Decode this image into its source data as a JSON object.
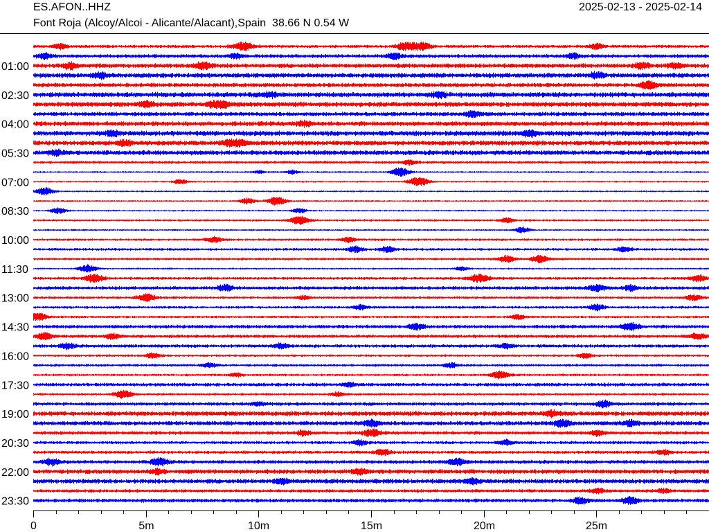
{
  "header": {
    "station": "ES.AFON..HHZ",
    "location": "Font Roja (Alcoy/Alcoi - Alicante/Alacant),Spain  38.66 N 0.54 W",
    "date_range": "2025-02-13 - 2025-02-14"
  },
  "colors": {
    "trace_a": "#ff0000",
    "trace_b": "#0000ff",
    "axis": "#000000"
  },
  "chart_data": {
    "type": "helicorder",
    "channel": "ES.AFON..HHZ",
    "xlabel": "",
    "ylabel": "",
    "x_range_minutes": [
      0,
      30
    ],
    "x_ticks": [
      "0",
      "5m",
      "10m",
      "15m",
      "20m",
      "25m"
    ],
    "x_tick_values": [
      0,
      5,
      10,
      15,
      20,
      25
    ],
    "minor_tick_step_minutes": 1,
    "row_interval_minutes": 30,
    "row_start_labels": [
      "01:00",
      "02:30",
      "04:00",
      "05:30",
      "07:00",
      "08:30",
      "10:00",
      "11:30",
      "13:00",
      "14:30",
      "16:00",
      "17:30",
      "19:00",
      "20:30",
      "22:00",
      "23:30"
    ],
    "row_labels_every_n_rows": 3,
    "rows": [
      {
        "start": "00:00",
        "color": "red",
        "level": 0.45,
        "events": [
          [
            1.2,
            0.5
          ],
          [
            9.3,
            0.9
          ],
          [
            16.5,
            0.8
          ],
          [
            17.2,
            0.9
          ],
          [
            25.0,
            0.5
          ]
        ]
      },
      {
        "start": "00:30",
        "color": "blue",
        "level": 0.6,
        "events": [
          [
            0.5,
            0.5
          ],
          [
            9.0,
            0.5
          ],
          [
            16.0,
            0.6
          ],
          [
            24.0,
            0.5
          ]
        ]
      },
      {
        "start": "01:00",
        "color": "red",
        "level": 0.75,
        "events": [
          [
            1.6,
            0.6
          ],
          [
            7.5,
            0.8
          ],
          [
            27.0,
            0.6
          ],
          [
            28.5,
            0.5
          ]
        ]
      },
      {
        "start": "01:30",
        "color": "blue",
        "level": 0.85,
        "events": [
          [
            3.0,
            0.5
          ],
          [
            25.0,
            0.5
          ]
        ]
      },
      {
        "start": "02:00",
        "color": "red",
        "level": 0.7,
        "events": [
          [
            27.3,
            0.8
          ]
        ]
      },
      {
        "start": "02:30",
        "color": "blue",
        "level": 0.9,
        "events": [
          [
            10.5,
            0.5
          ],
          [
            18.0,
            0.5
          ]
        ]
      },
      {
        "start": "03:00",
        "color": "red",
        "level": 0.85,
        "events": [
          [
            8.2,
            1.0
          ],
          [
            5.0,
            0.5
          ]
        ]
      },
      {
        "start": "03:30",
        "color": "blue",
        "level": 0.7,
        "events": [
          [
            19.5,
            0.6
          ]
        ]
      },
      {
        "start": "04:00",
        "color": "red",
        "level": 0.8,
        "events": [
          [
            12.0,
            0.5
          ]
        ]
      },
      {
        "start": "04:30",
        "color": "blue",
        "level": 0.9,
        "events": [
          [
            3.5,
            0.5
          ],
          [
            22.0,
            0.5
          ]
        ]
      },
      {
        "start": "05:00",
        "color": "red",
        "level": 0.85,
        "events": [
          [
            8.9,
            1.0
          ],
          [
            4.0,
            0.5
          ]
        ]
      },
      {
        "start": "05:30",
        "color": "blue",
        "level": 0.85,
        "events": [
          [
            1.0,
            0.5
          ]
        ]
      },
      {
        "start": "06:00",
        "color": "red",
        "level": 0.4,
        "events": [
          [
            16.7,
            0.5
          ]
        ]
      },
      {
        "start": "06:30",
        "color": "blue",
        "level": 0.15,
        "events": [
          [
            16.3,
            0.9
          ],
          [
            11.5,
            0.4
          ],
          [
            10.0,
            0.3
          ]
        ]
      },
      {
        "start": "07:00",
        "color": "red",
        "level": 0.15,
        "events": [
          [
            17.1,
            1.0
          ],
          [
            6.5,
            0.5
          ]
        ]
      },
      {
        "start": "07:30",
        "color": "blue",
        "level": 0.12,
        "events": [
          [
            0.5,
            0.8
          ]
        ]
      },
      {
        "start": "08:00",
        "color": "red",
        "level": 0.15,
        "events": [
          [
            10.8,
            0.9
          ],
          [
            9.5,
            0.6
          ]
        ]
      },
      {
        "start": "08:30",
        "color": "blue",
        "level": 0.12,
        "events": [
          [
            1.1,
            0.6
          ],
          [
            11.8,
            0.5
          ]
        ]
      },
      {
        "start": "09:00",
        "color": "red",
        "level": 0.25,
        "events": [
          [
            11.8,
            0.9
          ],
          [
            21.0,
            0.5
          ]
        ]
      },
      {
        "start": "09:30",
        "color": "blue",
        "level": 0.15,
        "events": [
          [
            21.7,
            0.6
          ]
        ]
      },
      {
        "start": "10:00",
        "color": "red",
        "level": 0.3,
        "events": [
          [
            8.0,
            0.6
          ],
          [
            14.0,
            0.5
          ]
        ]
      },
      {
        "start": "10:30",
        "color": "blue",
        "level": 0.35,
        "events": [
          [
            14.3,
            0.6
          ],
          [
            15.7,
            0.6
          ],
          [
            26.2,
            0.5
          ]
        ]
      },
      {
        "start": "11:00",
        "color": "red",
        "level": 0.3,
        "events": [
          [
            21.0,
            0.7
          ],
          [
            22.5,
            0.8
          ]
        ]
      },
      {
        "start": "11:30",
        "color": "blue",
        "level": 0.15,
        "events": [
          [
            2.4,
            0.8
          ],
          [
            19.0,
            0.4
          ]
        ]
      },
      {
        "start": "12:00",
        "color": "red",
        "level": 0.4,
        "events": [
          [
            2.7,
            0.8
          ],
          [
            19.8,
            0.9
          ],
          [
            29.5,
            0.6
          ]
        ]
      },
      {
        "start": "12:30",
        "color": "blue",
        "level": 0.55,
        "events": [
          [
            8.5,
            0.6
          ],
          [
            25.0,
            0.7
          ],
          [
            26.5,
            0.5
          ]
        ]
      },
      {
        "start": "13:00",
        "color": "red",
        "level": 0.35,
        "events": [
          [
            5.0,
            0.8
          ],
          [
            29.3,
            0.6
          ],
          [
            12.0,
            0.4
          ]
        ]
      },
      {
        "start": "13:30",
        "color": "blue",
        "level": 0.35,
        "events": [
          [
            25.0,
            0.6
          ],
          [
            14.5,
            0.5
          ]
        ]
      },
      {
        "start": "14:00",
        "color": "red",
        "level": 0.3,
        "events": [
          [
            0.2,
            0.8
          ],
          [
            21.5,
            0.5
          ]
        ]
      },
      {
        "start": "14:30",
        "color": "blue",
        "level": 0.55,
        "events": [
          [
            17.0,
            0.6
          ],
          [
            26.5,
            0.8
          ]
        ]
      },
      {
        "start": "15:00",
        "color": "red",
        "level": 0.5,
        "events": [
          [
            0.5,
            0.7
          ],
          [
            3.5,
            0.5
          ],
          [
            29.5,
            0.6
          ]
        ]
      },
      {
        "start": "15:30",
        "color": "blue",
        "level": 0.5,
        "events": [
          [
            1.5,
            0.6
          ],
          [
            11.0,
            0.5
          ],
          [
            21.0,
            0.5
          ]
        ]
      },
      {
        "start": "16:00",
        "color": "red",
        "level": 0.3,
        "events": [
          [
            5.3,
            0.5
          ],
          [
            24.5,
            0.5
          ]
        ]
      },
      {
        "start": "16:30",
        "color": "blue",
        "level": 0.35,
        "events": [
          [
            7.8,
            0.5
          ],
          [
            18.5,
            0.5
          ]
        ]
      },
      {
        "start": "17:00",
        "color": "red",
        "level": 0.3,
        "events": [
          [
            20.7,
            0.8
          ],
          [
            9.0,
            0.4
          ]
        ]
      },
      {
        "start": "17:30",
        "color": "blue",
        "level": 0.55,
        "events": [
          [
            14.0,
            0.4
          ]
        ]
      },
      {
        "start": "18:00",
        "color": "red",
        "level": 0.3,
        "events": [
          [
            4.0,
            0.8
          ],
          [
            13.5,
            0.4
          ]
        ]
      },
      {
        "start": "18:30",
        "color": "blue",
        "level": 0.55,
        "events": [
          [
            25.3,
            0.6
          ],
          [
            10.0,
            0.4
          ]
        ]
      },
      {
        "start": "19:00",
        "color": "red",
        "level": 0.8,
        "events": [
          [
            23.0,
            0.5
          ]
        ]
      },
      {
        "start": "19:30",
        "color": "blue",
        "level": 0.75,
        "events": [
          [
            15.0,
            0.6
          ],
          [
            23.5,
            0.7
          ],
          [
            26.5,
            0.6
          ]
        ]
      },
      {
        "start": "20:00",
        "color": "red",
        "level": 0.55,
        "events": [
          [
            15.0,
            0.7
          ],
          [
            25.0,
            0.5
          ],
          [
            12.0,
            0.5
          ]
        ]
      },
      {
        "start": "20:30",
        "color": "blue",
        "level": 0.45,
        "events": [
          [
            14.5,
            0.5
          ],
          [
            21.0,
            0.5
          ]
        ]
      },
      {
        "start": "21:00",
        "color": "red",
        "level": 0.45,
        "events": [
          [
            15.5,
            0.6
          ],
          [
            28.0,
            0.5
          ]
        ]
      },
      {
        "start": "21:30",
        "color": "blue",
        "level": 0.6,
        "events": [
          [
            0.8,
            0.6
          ],
          [
            5.6,
            0.8
          ],
          [
            18.8,
            0.7
          ]
        ]
      },
      {
        "start": "22:00",
        "color": "red",
        "level": 0.75,
        "events": [
          [
            14.5,
            0.6
          ],
          [
            5.5,
            0.5
          ]
        ]
      },
      {
        "start": "22:30",
        "color": "blue",
        "level": 0.8,
        "events": [
          [
            11.0,
            0.5
          ],
          [
            19.5,
            0.5
          ]
        ]
      },
      {
        "start": "23:00",
        "color": "red",
        "level": 0.5,
        "events": [
          [
            25.0,
            0.5
          ],
          [
            28.0,
            0.4
          ]
        ]
      },
      {
        "start": "23:30",
        "color": "blue",
        "level": 0.6,
        "events": [
          [
            26.5,
            0.7
          ],
          [
            24.3,
            0.6
          ]
        ]
      }
    ]
  }
}
